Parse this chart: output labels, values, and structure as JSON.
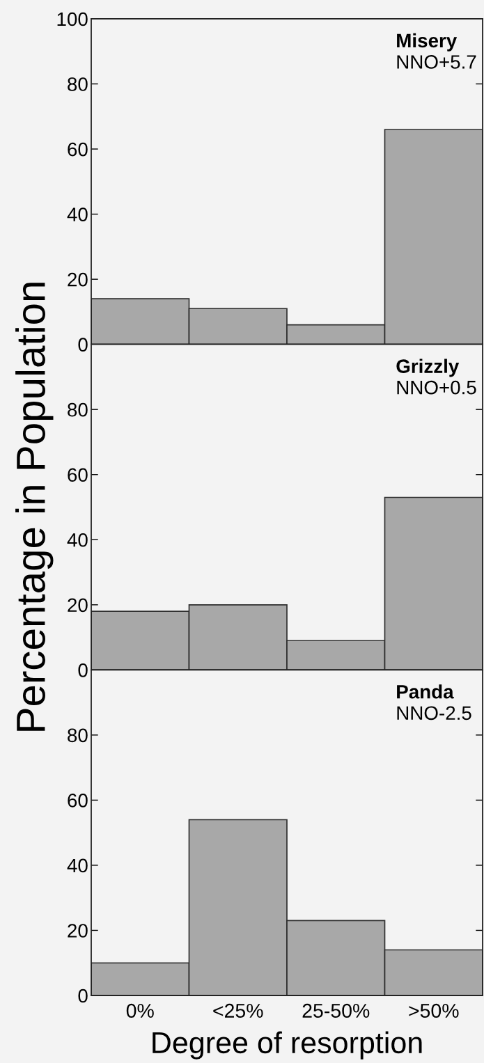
{
  "chart_data": [
    {
      "type": "bar",
      "title": "Misery",
      "subtitle": "NNO+5.7",
      "categories": [
        null,
        null,
        null,
        null
      ],
      "values": [
        14,
        11,
        6,
        66
      ],
      "color": "#a8a8a8",
      "ylim": [
        0,
        100
      ],
      "yticks": [
        0,
        20,
        40,
        60,
        80,
        100
      ]
    },
    {
      "type": "bar",
      "title": "Grizzly",
      "subtitle": "NNO+0.5",
      "ylabel": "Percentage in Population",
      "categories": [
        null,
        null,
        null,
        null
      ],
      "values": [
        18,
        20,
        9,
        53
      ],
      "color": "#a8a8a8",
      "ylim": [
        0,
        100
      ],
      "yticks": [
        0,
        20,
        40,
        60,
        80
      ]
    },
    {
      "type": "bar",
      "title": "Panda",
      "subtitle": "NNO-2.5",
      "xlabel": "Degree of resorption",
      "categories": [
        "0%",
        "<25%",
        "25-50%",
        ">50%"
      ],
      "values": [
        10,
        54,
        23,
        14
      ],
      "color": "#a8a8a8",
      "ylim": [
        0,
        100
      ],
      "yticks": [
        0,
        20,
        40,
        60,
        80
      ]
    }
  ]
}
